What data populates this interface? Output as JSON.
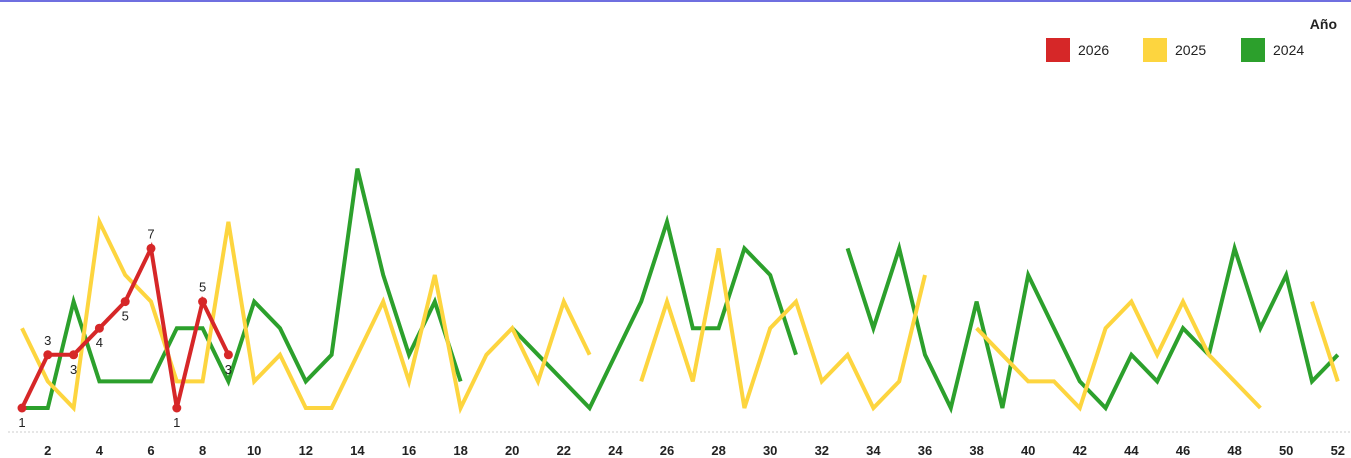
{
  "chart_data": {
    "type": "line",
    "legend_title": "Año",
    "legend_position": "top-right",
    "x_ticks": [
      2,
      4,
      6,
      8,
      10,
      12,
      14,
      16,
      18,
      20,
      22,
      24,
      26,
      28,
      30,
      32,
      34,
      36,
      38,
      40,
      42,
      44,
      46,
      48,
      50,
      52
    ],
    "xlim": [
      1,
      52
    ],
    "ylim": [
      0,
      10
    ],
    "grid": false,
    "series": [
      {
        "name": "2024",
        "color": "#2ca02c",
        "data_labels": false,
        "points": [
          [
            1,
            1
          ],
          [
            2,
            1
          ],
          [
            3,
            5
          ],
          [
            4,
            2
          ],
          [
            5,
            2
          ],
          [
            6,
            2
          ],
          [
            7,
            4
          ],
          [
            8,
            4
          ],
          [
            9,
            2
          ],
          [
            10,
            5
          ],
          [
            11,
            4
          ],
          [
            12,
            2
          ],
          [
            13,
            3
          ],
          [
            14,
            10
          ],
          [
            15,
            6
          ],
          [
            16,
            3
          ],
          [
            17,
            5
          ],
          [
            18,
            2
          ],
          null,
          [
            20,
            4
          ],
          [
            21,
            3
          ],
          [
            22,
            2
          ],
          [
            23,
            1
          ],
          [
            24,
            3
          ],
          [
            25,
            5
          ],
          [
            26,
            8
          ],
          [
            27,
            4
          ],
          [
            28,
            4
          ],
          [
            29,
            7
          ],
          [
            30,
            6
          ],
          [
            31,
            3
          ],
          null,
          [
            33,
            7
          ],
          [
            34,
            4
          ],
          [
            35,
            7
          ],
          [
            36,
            3
          ],
          [
            37,
            1
          ],
          [
            38,
            5
          ],
          [
            39,
            1
          ],
          [
            40,
            6
          ],
          [
            41,
            4
          ],
          [
            42,
            2
          ],
          [
            43,
            1
          ],
          [
            44,
            3
          ],
          [
            45,
            2
          ],
          [
            46,
            4
          ],
          [
            47,
            3
          ],
          [
            48,
            7
          ],
          [
            49,
            4
          ],
          [
            50,
            6
          ],
          [
            51,
            2
          ],
          [
            52,
            3
          ]
        ]
      },
      {
        "name": "2025",
        "color": "#fdd53f",
        "data_labels": false,
        "points": [
          [
            1,
            4
          ],
          [
            2,
            2
          ],
          [
            3,
            1
          ],
          [
            4,
            8
          ],
          [
            5,
            6
          ],
          [
            6,
            5
          ],
          [
            7,
            2
          ],
          [
            8,
            2
          ],
          [
            9,
            8
          ],
          [
            10,
            2
          ],
          [
            11,
            3
          ],
          [
            12,
            1
          ],
          [
            13,
            1
          ],
          [
            14,
            3
          ],
          [
            15,
            5
          ],
          [
            16,
            2
          ],
          [
            17,
            6
          ],
          [
            18,
            1
          ],
          [
            19,
            3
          ],
          [
            20,
            4
          ],
          [
            21,
            2
          ],
          [
            22,
            5
          ],
          [
            23,
            3
          ],
          null,
          [
            25,
            2
          ],
          [
            26,
            5
          ],
          [
            27,
            2
          ],
          [
            28,
            7
          ],
          [
            29,
            1
          ],
          [
            30,
            4
          ],
          [
            31,
            5
          ],
          [
            32,
            2
          ],
          [
            33,
            3
          ],
          [
            34,
            1
          ],
          [
            35,
            2
          ],
          [
            36,
            6
          ],
          null,
          [
            38,
            4
          ],
          [
            39,
            3
          ],
          [
            40,
            2
          ],
          [
            41,
            2
          ],
          [
            42,
            1
          ],
          [
            43,
            4
          ],
          [
            44,
            5
          ],
          [
            45,
            3
          ],
          [
            46,
            5
          ],
          [
            47,
            3
          ],
          [
            48,
            2
          ],
          [
            49,
            1
          ],
          null,
          [
            51,
            5
          ],
          [
            52,
            2
          ]
        ]
      },
      {
        "name": "2026",
        "color": "#d62728",
        "data_labels": true,
        "points": [
          [
            1,
            1
          ],
          [
            2,
            3
          ],
          [
            3,
            3
          ],
          [
            4,
            4
          ],
          [
            5,
            5
          ],
          [
            6,
            7
          ],
          [
            7,
            1
          ],
          [
            8,
            5
          ],
          [
            9,
            3
          ]
        ]
      }
    ]
  }
}
